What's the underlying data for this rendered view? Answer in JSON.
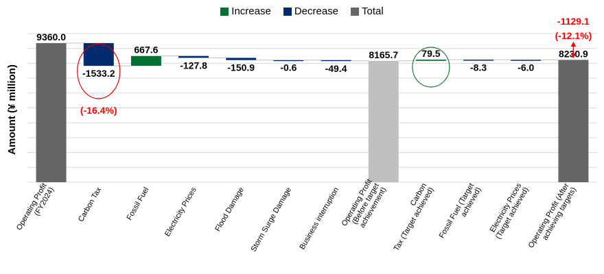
{
  "chart_data": {
    "type": "bar",
    "subtype": "waterfall",
    "ylabel": "Amount (¥ million)",
    "legend_position": "top",
    "grid": true,
    "categories": [
      "Operating Profit (FY2024)",
      "Carbon Tax",
      "Fossil Fuel",
      "Electricity Prices",
      "Flood Damage",
      "Storm Surge Damage",
      "Business interruption",
      "Operating Profit (Before target achievement)",
      "Carbon Tax (Target achieved)",
      "Fossil Fuel (Target achieved)",
      "Electricity Prices (Target achieved)",
      "Operating Profit (After achieving targets)"
    ],
    "tick_label_lines": [
      [
        "Operating Profit",
        "(FY2024)"
      ],
      [
        "Carbon Tax"
      ],
      [
        "Fossil Fuel"
      ],
      [
        "Electricity Prices"
      ],
      [
        "Flood Damage"
      ],
      [
        "Storm Surge Damage"
      ],
      [
        "Business interruption"
      ],
      [
        "Operating Profit",
        "(Before target",
        "achievement)"
      ],
      [
        "Carbon",
        "Tax (Target achieved)"
      ],
      [
        "Fossil Fuel (Target",
        "achieved)"
      ],
      [
        "Electricity Prices",
        "(Target achieved)"
      ],
      [
        "Operating Profit (After",
        "achieving targets)"
      ]
    ],
    "values": [
      9360.0,
      -1533.2,
      667.6,
      -127.8,
      -150.9,
      -0.6,
      -49.4,
      8165.7,
      79.5,
      -8.3,
      -6.0,
      8230.9
    ],
    "value_labels": [
      "9360.0",
      "-1533.2",
      "667.6",
      "-127.8",
      "-150.9",
      "-0.6",
      "-49.4",
      "8165.7",
      "79.5",
      "-8.3",
      "-6.0",
      "8230.9"
    ],
    "bar_kinds": [
      "total",
      "decrease",
      "increase",
      "decrease",
      "decrease",
      "decrease",
      "decrease",
      "total_light",
      "increase",
      "decrease",
      "decrease",
      "total"
    ],
    "ylim": [
      0,
      10000
    ],
    "legend": [
      {
        "label": "Increase",
        "color": "#007033"
      },
      {
        "label": "Decrease",
        "color": "#002b6e"
      },
      {
        "label": "Total",
        "color": "#666666"
      }
    ],
    "colors": {
      "increase": "#007033",
      "decrease": "#002b6e",
      "total": "#666666",
      "total_light": "#bfbfbf",
      "annotation": "#ff0000",
      "circle_red": "#e00000",
      "circle_green": "#1f7a3a"
    },
    "annotations": [
      {
        "text": "(-16.4%)",
        "category_index": 1
      },
      {
        "text": "-1129.1",
        "category_index": 11
      },
      {
        "text": "(-12.1%)",
        "category_index": 11
      }
    ]
  }
}
